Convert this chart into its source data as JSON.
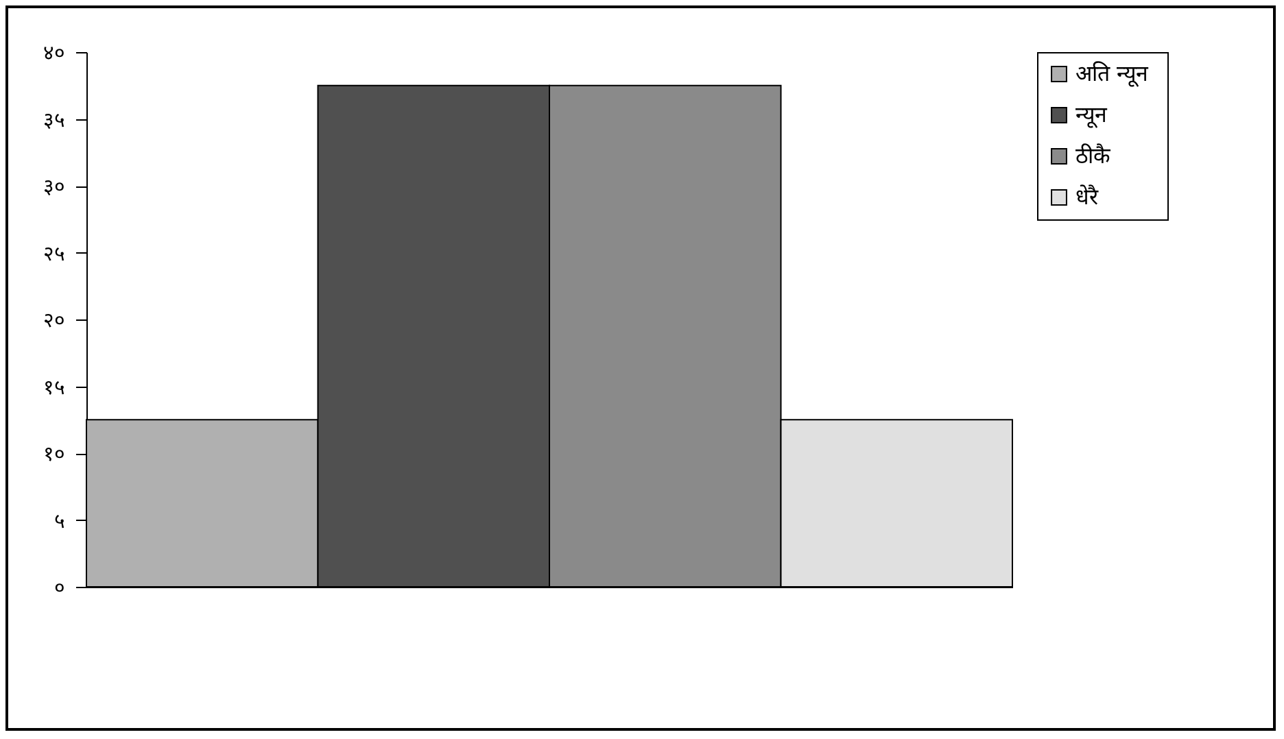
{
  "chart_data": {
    "type": "bar",
    "categories": [
      null
    ],
    "series": [
      {
        "name": "अति  न्यून",
        "color": "#b0b0b0",
        "values": [
          12.5
        ]
      },
      {
        "name": "न्यून",
        "color": "#505050",
        "values": [
          37.5
        ]
      },
      {
        "name": "ठीकै",
        "color": "#8a8a8a",
        "values": [
          37.5
        ]
      },
      {
        "name": "धेरै",
        "color": "#e0e0e0",
        "values": [
          12.5
        ]
      }
    ],
    "ylim": [
      0,
      40
    ],
    "yticks": [
      {
        "value": 0,
        "label": "०"
      },
      {
        "value": 5,
        "label": "५"
      },
      {
        "value": 10,
        "label": "१०"
      },
      {
        "value": 15,
        "label": "१५"
      },
      {
        "value": 20,
        "label": "२०"
      },
      {
        "value": 25,
        "label": "२५"
      },
      {
        "value": 30,
        "label": "३०"
      },
      {
        "value": 35,
        "label": "३५"
      },
      {
        "value": 40,
        "label": "४०"
      }
    ],
    "legend": "right",
    "grid": false
  }
}
